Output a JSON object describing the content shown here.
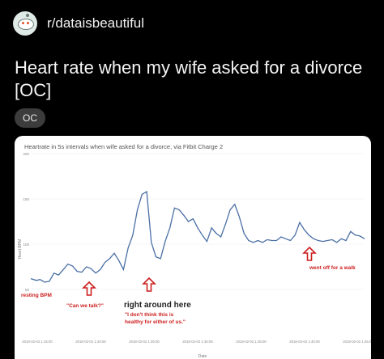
{
  "post": {
    "subreddit": "r/dataisbeautiful",
    "title": "Heart rate when my wife asked for a divorce [OC]",
    "flair": "OC"
  },
  "chart_data": {
    "type": "line",
    "title": "Heartrate in 5s intervals when wife asked for a divorce, via Fitbit Charge 2",
    "xlabel": "Date",
    "ylabel": "Heart BPM",
    "ylim": [
      0,
      200
    ],
    "y_ticks": [
      50,
      100,
      150,
      200
    ],
    "x_ticks": [
      "2018-02-02 1:15:00",
      "2018-02-02 1:20:00",
      "2018-02-02 1:25:00",
      "2018-02-02 1:30:00",
      "2018-02-02 1:35:00",
      "2018-02-02 1:40:00",
      "2018-02-02 1:45:00"
    ],
    "series": [
      {
        "x": [
          0,
          0.6,
          1,
          1.5,
          2,
          2.5,
          3,
          3.5,
          4,
          4.5,
          5,
          5.5,
          6,
          6.5,
          7,
          7.5,
          8,
          8.5,
          9,
          9.5,
          10,
          10.5,
          11,
          11.5,
          12,
          12.5,
          13,
          13.5,
          14,
          14.5,
          15,
          15.5,
          16,
          16.5,
          17,
          17.5,
          18,
          18.5,
          19,
          19.5,
          20,
          20.5,
          21,
          21.5,
          22,
          22.5,
          23,
          23.5,
          24,
          24.5,
          25,
          25.5,
          26,
          26.5,
          27,
          27.5,
          28,
          28.5,
          29,
          29.5,
          30,
          30.5,
          31,
          31.5,
          32,
          32.5,
          33,
          33.5,
          34,
          34.5,
          35,
          35.5,
          36
        ],
        "values": [
          62,
          60,
          61,
          58,
          59,
          68,
          66,
          72,
          78,
          76,
          70,
          69,
          75,
          73,
          68,
          72,
          80,
          84,
          90,
          82,
          72,
          96,
          110,
          138,
          155,
          158,
          102,
          86,
          84,
          103,
          118,
          140,
          138,
          132,
          125,
          128,
          118,
          110,
          103,
          118,
          112,
          108,
          122,
          138,
          144,
          130,
          112,
          104,
          102,
          104,
          102,
          105,
          104,
          104,
          108,
          106,
          104,
          110,
          124,
          116,
          110,
          106,
          104,
          103,
          104,
          105,
          102,
          106,
          104,
          114,
          110,
          109,
          106
        ]
      }
    ],
    "annotations": [
      {
        "text": "resting BPM",
        "color": "#cc1f1f"
      },
      {
        "text": "\"Can we talk?\"",
        "color": "#cc1f1f"
      },
      {
        "text": "right around here",
        "color": "#222222"
      },
      {
        "text": "\"I don't think this is healthy for either of us.\"",
        "color": "#cc1f1f"
      },
      {
        "text": "went off for a walk",
        "color": "#cc1f1f"
      }
    ],
    "line_color": "#4a6fa5"
  }
}
